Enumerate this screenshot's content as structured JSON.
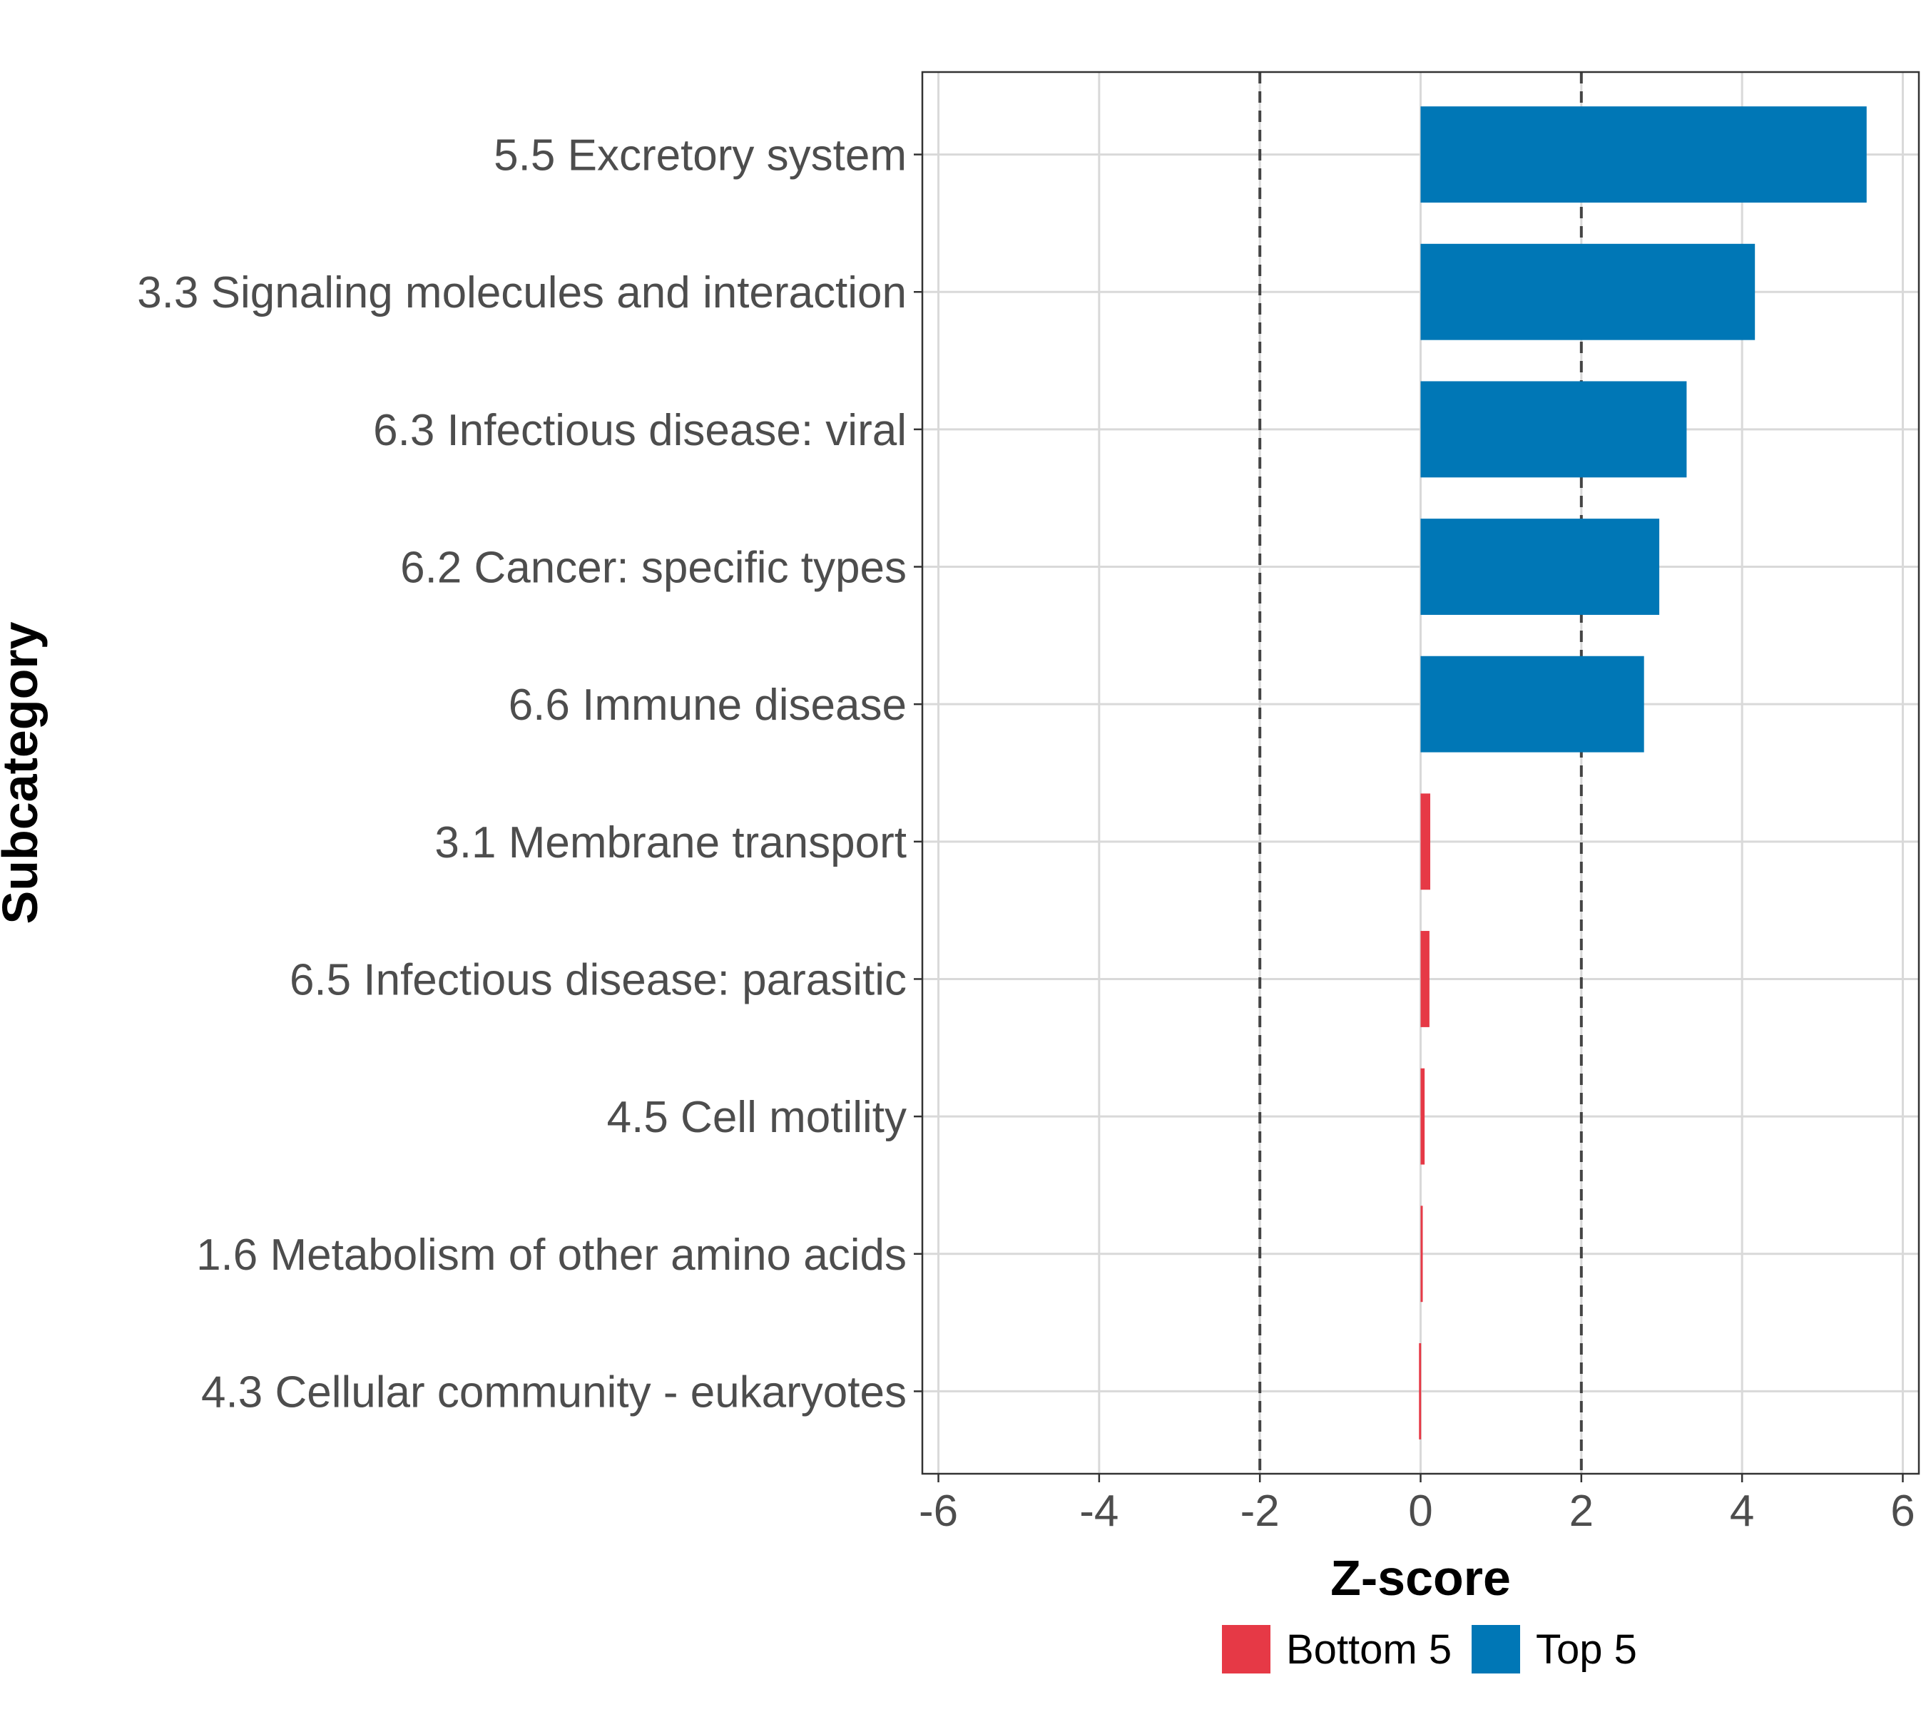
{
  "chart_data": {
    "type": "bar",
    "orientation": "horizontal",
    "title": "",
    "xlabel": "Z-score",
    "ylabel": "Subcategory",
    "xlim": [
      -6,
      6
    ],
    "x_ticks": [
      -6,
      -4,
      -2,
      0,
      2,
      4,
      6
    ],
    "reference_lines": [
      -2,
      2
    ],
    "grid": true,
    "legend_position": "bottom",
    "categories": [
      "5.5 Excretory system",
      "3.3 Signaling molecules and interaction",
      "6.3 Infectious disease: viral",
      "6.2 Cancer: specific types",
      "6.6 Immune disease",
      "3.1 Membrane transport",
      "6.5 Infectious disease: parasitic",
      "4.5 Cell motility",
      "1.6 Metabolism of other amino acids",
      "4.3 Cellular community - eukaryotes"
    ],
    "values": [
      5.55,
      4.16,
      3.31,
      2.97,
      2.78,
      0.12,
      0.11,
      0.05,
      0.02,
      -0.02
    ],
    "groups": [
      "Top 5",
      "Top 5",
      "Top 5",
      "Top 5",
      "Top 5",
      "Bottom 5",
      "Bottom 5",
      "Bottom 5",
      "Bottom 5",
      "Bottom 5"
    ],
    "legend": [
      {
        "name": "Bottom 5",
        "color": "#E63946"
      },
      {
        "name": "Top 5",
        "color": "#0077B6"
      }
    ]
  }
}
